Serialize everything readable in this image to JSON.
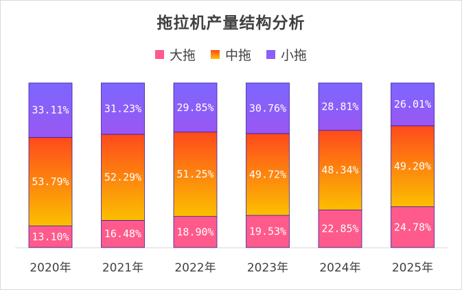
{
  "chart_data": {
    "type": "bar",
    "stacked": true,
    "title": "拖拉机产量结构分析",
    "categories": [
      "2020年",
      "2021年",
      "2022年",
      "2023年",
      "2024年",
      "2025年"
    ],
    "series": [
      {
        "name": "大拖",
        "values": [
          13.1,
          16.48,
          18.9,
          19.53,
          22.85,
          24.78
        ],
        "labels": [
          "13.10%",
          "16.48%",
          "18.90%",
          "19.53%",
          "22.85%",
          "24.78%"
        ],
        "color_top": "#ff5a8c",
        "color_bottom": "#ff5a8c"
      },
      {
        "name": "中拖",
        "values": [
          53.79,
          52.29,
          51.25,
          49.72,
          48.34,
          49.2
        ],
        "labels": [
          "53.79%",
          "52.29%",
          "51.25%",
          "49.72%",
          "48.34%",
          "49.20%"
        ],
        "color_top": "#ff4a1c",
        "color_bottom": "#fbbf00"
      },
      {
        "name": "小拖",
        "values": [
          33.11,
          31.23,
          29.85,
          30.76,
          28.81,
          26.01
        ],
        "labels": [
          "33.11%",
          "31.23%",
          "29.85%",
          "30.76%",
          "28.81%",
          "26.01%"
        ],
        "color_top": "#7c66ff",
        "color_bottom": "#9a57f2"
      }
    ],
    "ylim": [
      0,
      100
    ],
    "legend_position": "top",
    "grid": false,
    "colors": {
      "large": "#ff5a8c",
      "medium": "#f7a400",
      "small": "#8a5cf6",
      "bar_border": "#3a1f9e",
      "axis": "#d9d9d9",
      "text": "#404040"
    }
  }
}
